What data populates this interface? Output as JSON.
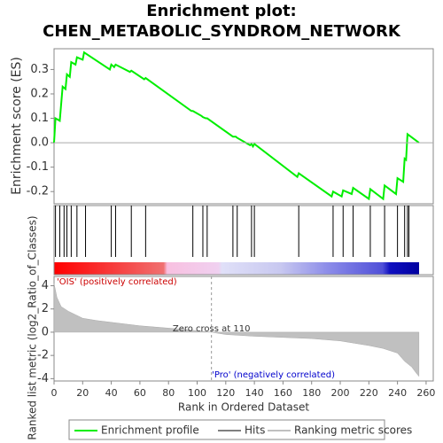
{
  "chart_data": [
    {
      "type": "line",
      "title": [
        "Enrichment plot:",
        "CHEN_METABOLIC_SYNDROM_NETWORK"
      ],
      "y_label": "Enrichment score (ES)",
      "x": [
        0,
        1,
        4,
        6,
        8,
        9,
        11,
        12,
        15,
        16,
        20,
        21,
        39,
        40,
        42,
        43,
        53,
        54,
        63,
        64,
        96,
        97,
        103,
        104,
        106,
        107,
        125,
        127,
        128,
        137,
        138,
        139,
        140,
        170,
        171,
        194,
        195,
        201,
        202,
        208,
        209,
        220,
        221,
        230,
        231,
        239,
        240,
        244,
        245,
        246,
        247,
        255
      ],
      "series": [
        {
          "name": "Enrichment profile",
          "color": "#00ee00",
          "values": [
            0,
            0.1,
            0.09,
            0.23,
            0.22,
            0.28,
            0.27,
            0.33,
            0.32,
            0.35,
            0.34,
            0.37,
            0.3,
            0.32,
            0.31,
            0.32,
            0.29,
            0.295,
            0.26,
            0.265,
            0.13,
            0.13,
            0.11,
            0.105,
            0.1,
            0.1,
            0.025,
            0.025,
            0.02,
            -0.01,
            -0.005,
            -0.015,
            -0.005,
            -0.14,
            -0.125,
            -0.22,
            -0.2,
            -0.22,
            -0.195,
            -0.21,
            -0.185,
            -0.23,
            -0.19,
            -0.23,
            -0.175,
            -0.21,
            -0.145,
            -0.16,
            -0.065,
            -0.07,
            0.035,
            0
          ]
        }
      ],
      "xlim": [
        0,
        265
      ],
      "ylim": [
        -0.25,
        0.385
      ],
      "yticks": [
        -0.2,
        -0.1,
        {
          "value": 0,
          "label": "0.0"
        },
        0.1,
        0.2,
        0.3
      ]
    },
    {
      "type": "hits",
      "name": "Hits",
      "color": "#000000",
      "x": [
        1,
        4,
        7,
        9,
        12,
        16,
        22,
        40,
        43,
        54,
        64,
        97,
        104,
        107,
        125,
        128,
        138,
        140,
        171,
        195,
        202,
        209,
        221,
        231,
        240,
        245,
        247,
        248
      ],
      "xlim": [
        0,
        265
      ]
    },
    {
      "type": "area",
      "y_label": "Ranked list metric (log2_Ratio_of_Classes)",
      "x_label": "Rank in Ordered Dataset",
      "series": [
        {
          "name": "Ranking metric scores",
          "color": "#c0c0c0"
        }
      ],
      "x": [
        0,
        2,
        5,
        10,
        15,
        20,
        30,
        40,
        50,
        60,
        70,
        80,
        90,
        100,
        110,
        120,
        140,
        160,
        180,
        200,
        210,
        220,
        230,
        235,
        240,
        245,
        250,
        253,
        255
      ],
      "values": [
        4.2,
        3.0,
        2.2,
        1.8,
        1.5,
        1.2,
        1.0,
        0.85,
        0.7,
        0.55,
        0.45,
        0.35,
        0.25,
        0.12,
        0,
        -0.2,
        -0.35,
        -0.45,
        -0.55,
        -0.75,
        -0.95,
        -1.15,
        -1.4,
        -1.6,
        -1.8,
        -2.5,
        -3.0,
        -3.5,
        -3.8
      ],
      "xlim": [
        0,
        265
      ],
      "ylim": [
        -4.2,
        4.8
      ],
      "xticks": [
        0,
        20,
        40,
        60,
        80,
        100,
        120,
        140,
        160,
        180,
        200,
        220,
        240,
        260
      ],
      "yticks": [
        4,
        2,
        0,
        -2,
        -4
      ],
      "pos_label": "'OIS' (positively correlated)",
      "neg_label": "'Pro' (negatively correlated)",
      "zero_cross": {
        "value": 110,
        "label": "Zero cross at 110"
      }
    }
  ]
}
